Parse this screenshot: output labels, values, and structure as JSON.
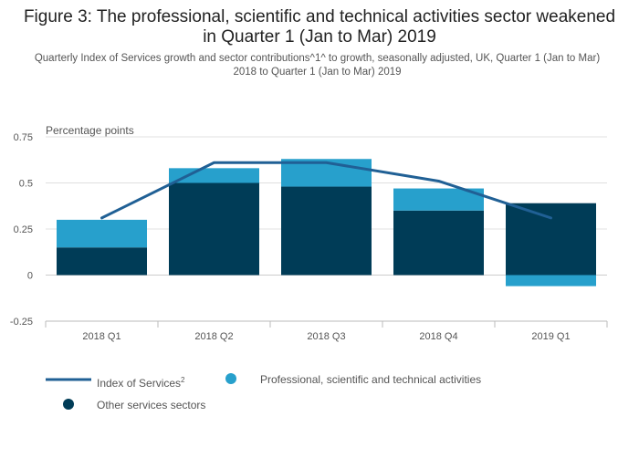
{
  "title": "Figure 3: The professional, scientific and technical activities sector weakened in Quarter 1 (Jan to Mar) 2019",
  "subtitle": "Quarterly Index of Services growth and sector contributions^1^ to growth, seasonally adjusted, UK, Quarter 1 (Jan to Mar) 2018 to Quarter 1 (Jan to Mar) 2019",
  "colors": {
    "index_line": "#206095",
    "professional": "#27a0cc",
    "other": "#003c57",
    "gridline": "#e0e0e0",
    "zeroline": "#cccccc"
  },
  "chart_data": {
    "type": "bar",
    "stacked": true,
    "categories": [
      "2018 Q1",
      "2018 Q2",
      "2018 Q3",
      "2018 Q4",
      "2019 Q1"
    ],
    "ylabel": "Percentage points",
    "ylim": [
      -0.25,
      0.75
    ],
    "yticks": [
      {
        "value": 0.75,
        "label": "0.75"
      },
      {
        "value": 0.5,
        "label": "0.5"
      },
      {
        "value": 0.25,
        "label": "0.25"
      },
      {
        "value": 0,
        "label": "0"
      },
      {
        "value": -0.25,
        "label": "-0.25"
      }
    ],
    "grid": true,
    "legend_position": "bottom",
    "series": [
      {
        "name": "Other services sectors",
        "kind": "bar",
        "color_key": "other",
        "values": [
          0.15,
          0.5,
          0.48,
          0.35,
          0.39
        ]
      },
      {
        "name": "Professional, scientific and technical activities",
        "kind": "bar",
        "color_key": "professional",
        "values": [
          0.15,
          0.08,
          0.15,
          0.12,
          -0.06
        ]
      },
      {
        "name": "Index of Services",
        "name_superscript": "2",
        "kind": "line",
        "color_key": "index_line",
        "values": [
          0.31,
          0.61,
          0.61,
          0.51,
          0.31
        ]
      }
    ]
  }
}
